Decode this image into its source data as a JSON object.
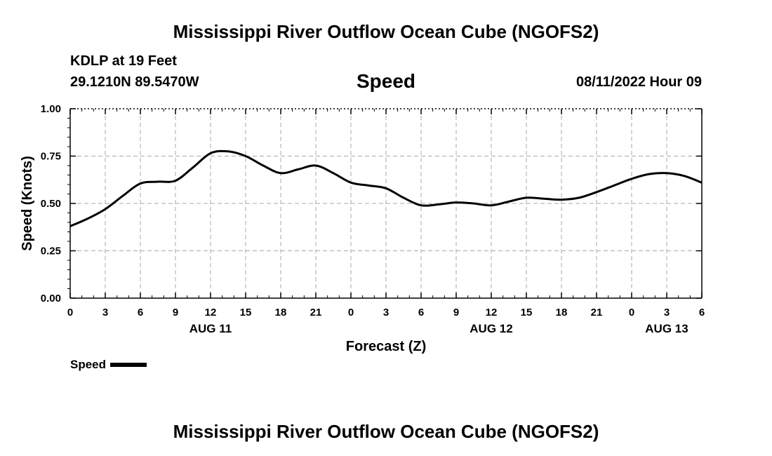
{
  "header": {
    "title": "Mississippi River Outflow Ocean Cube (NGOFS2)",
    "station": "KDLP at 19 Feet",
    "coordinates": "29.1210N  89.5470W",
    "chart_heading": "Speed",
    "datetime": "08/11/2022 Hour 09"
  },
  "footer": {
    "title": "Mississippi River Outflow Ocean Cube (NGOFS2)"
  },
  "legend": {
    "label": "Speed",
    "color": "#000000"
  },
  "chart_data": {
    "type": "line",
    "title": "Speed",
    "xlabel": "Forecast (Z)",
    "ylabel": "Speed (Knots)",
    "xlim": [
      0,
      54
    ],
    "ylim": [
      0,
      1.0
    ],
    "grid": true,
    "x_ticks": [
      0,
      3,
      6,
      9,
      12,
      15,
      18,
      21,
      24,
      27,
      30,
      33,
      36,
      39,
      42,
      45,
      48,
      51,
      54
    ],
    "x_tick_labels": [
      "0",
      "3",
      "6",
      "9",
      "12",
      "15",
      "18",
      "21",
      "0",
      "3",
      "6",
      "9",
      "12",
      "15",
      "18",
      "21",
      "0",
      "3",
      "6"
    ],
    "y_ticks": [
      0,
      0.25,
      0.5,
      0.75,
      1.0
    ],
    "y_tick_labels": [
      "0.00",
      "0.25",
      "0.50",
      "0.75",
      "1.00"
    ],
    "date_labels": [
      {
        "x": 12,
        "label": "AUG 11"
      },
      {
        "x": 36,
        "label": "AUG 12"
      },
      {
        "x": 51,
        "label": "AUG 13"
      }
    ],
    "series": [
      {
        "name": "Speed",
        "color": "#000000",
        "x": [
          0,
          1.5,
          3,
          4.5,
          6,
          7.5,
          9,
          10.5,
          12,
          13.5,
          15,
          16.5,
          18,
          19.5,
          21,
          22.5,
          24,
          25.5,
          27,
          28.5,
          30,
          31.5,
          33,
          34.5,
          36,
          37.5,
          39,
          40.5,
          42,
          43.5,
          45,
          46.5,
          48,
          49.5,
          51,
          52.5,
          54
        ],
        "values": [
          0.38,
          0.42,
          0.47,
          0.54,
          0.605,
          0.615,
          0.62,
          0.69,
          0.765,
          0.775,
          0.75,
          0.7,
          0.66,
          0.68,
          0.7,
          0.66,
          0.61,
          0.595,
          0.58,
          0.53,
          0.49,
          0.495,
          0.505,
          0.5,
          0.49,
          0.51,
          0.53,
          0.525,
          0.52,
          0.53,
          0.56,
          0.595,
          0.63,
          0.655,
          0.66,
          0.645,
          0.61
        ]
      }
    ]
  }
}
